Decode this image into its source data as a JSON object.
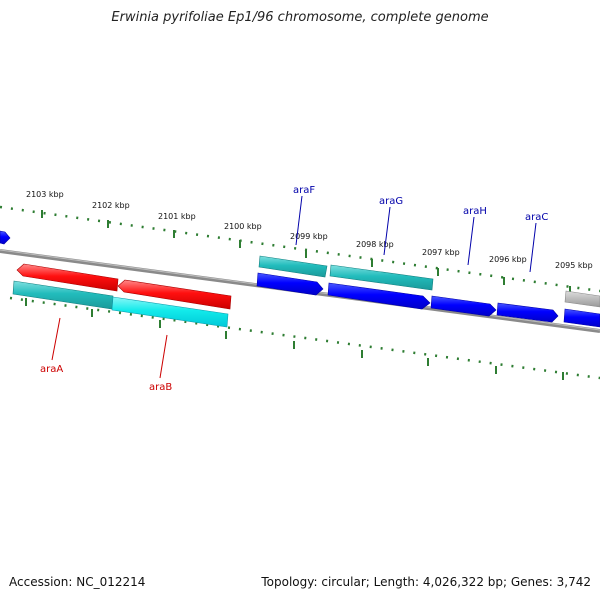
{
  "title": "Erwinia pyrifoliae Ep1/96 chromosome, complete genome",
  "footer": {
    "accession": "Accession: NC_012214",
    "summary": "Topology: circular; Length: 4,026,322 bp; Genes: 3,742"
  },
  "colors": {
    "backbone": "#808080",
    "ticks": "#2e7d32",
    "red_gene": "#ff0000",
    "cyan_gene": "#22c8c8",
    "blue_gene": "#0000ff",
    "grey_gene": "#bbbbbb",
    "red_label": "#cc0000",
    "blue_label": "#0000aa"
  },
  "ticks": [
    {
      "kbp": 2103,
      "label": "2103 kbp"
    },
    {
      "kbp": 2102,
      "label": "2102 kbp"
    },
    {
      "kbp": 2101,
      "label": "2101 kbp"
    },
    {
      "kbp": 2100,
      "label": "2100 kbp"
    },
    {
      "kbp": 2099,
      "label": "2099 kbp"
    },
    {
      "kbp": 2098,
      "label": "2098 kbp"
    },
    {
      "kbp": 2097,
      "label": "2097 kbp"
    },
    {
      "kbp": 2096,
      "label": "2096 kbp"
    },
    {
      "kbp": 2095,
      "label": "2095 kbp"
    }
  ],
  "genes": [
    {
      "name": "araA",
      "label": "araA",
      "color": "red",
      "strand": "minus"
    },
    {
      "name": "araB",
      "label": "araB",
      "color": "red",
      "strand": "minus"
    },
    {
      "name": "araF",
      "label": "araF",
      "color": "blue",
      "strand": "plus"
    },
    {
      "name": "araG",
      "label": "araG",
      "color": "blue",
      "strand": "plus"
    },
    {
      "name": "araH",
      "label": "araH",
      "color": "blue",
      "strand": "plus"
    },
    {
      "name": "araC",
      "label": "araC",
      "color": "blue",
      "strand": "plus"
    }
  ]
}
